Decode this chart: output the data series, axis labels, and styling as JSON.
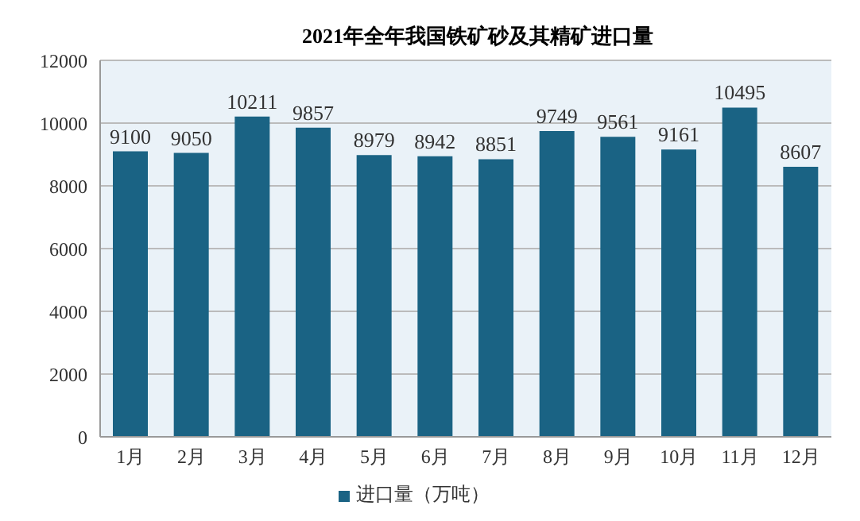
{
  "chart_data": {
    "type": "bar",
    "title": "2021年全年我国铁矿砂及其精矿进口量",
    "categories": [
      "1月",
      "2月",
      "3月",
      "4月",
      "5月",
      "6月",
      "7月",
      "8月",
      "9月",
      "10月",
      "11月",
      "12月"
    ],
    "series": [
      {
        "name": "进口量（万吨）",
        "color": "#1a6384",
        "values": [
          9100,
          9050,
          10211,
          9857,
          8979,
          8942,
          8851,
          9749,
          9561,
          9161,
          10495,
          8607
        ]
      }
    ],
    "ylim": [
      0,
      12000
    ],
    "yticks": [
      0,
      2000,
      4000,
      6000,
      8000,
      10000,
      12000
    ],
    "grid": "y",
    "legend": "bottom",
    "data_labels": true
  }
}
